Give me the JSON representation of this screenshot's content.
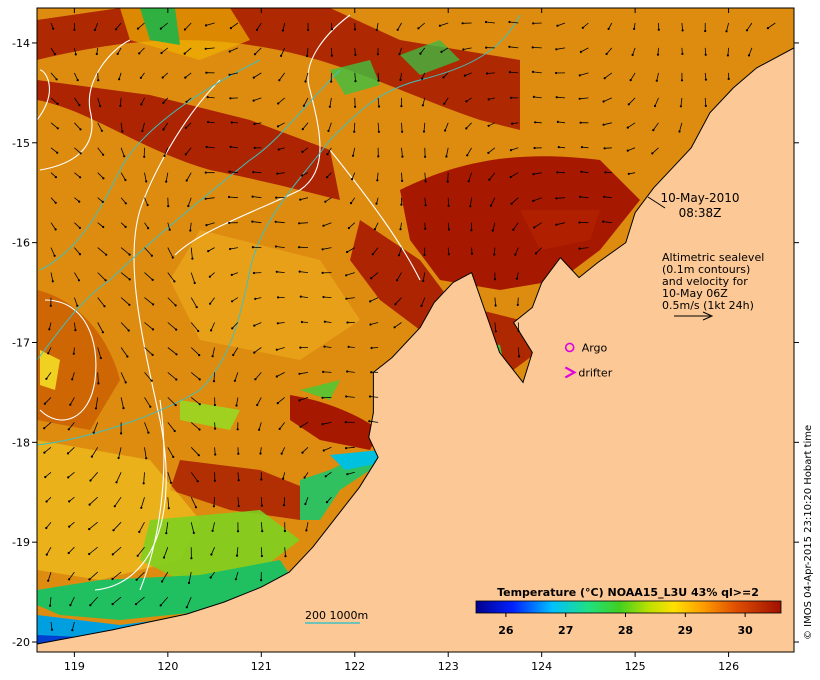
{
  "map": {
    "annotations": {
      "date": "10-May-2010",
      "time": "08:38Z",
      "altimetry_lines": [
        "Altimetric sealevel",
        "(0.1m contours)",
        "and velocity for",
        "10-May 06Z",
        "0.5m/s (1kt 24h)"
      ],
      "argo_label": "Argo",
      "drifter_label": "drifter",
      "depth_scale_label": "200  1000m"
    },
    "legend": {
      "title": "Temperature (°C) NOAA15_L3U 43% ql>=2",
      "ticks": [
        "26",
        "27",
        "28",
        "29",
        "30"
      ]
    },
    "credit": "© IMOS 04-Apr-2015 23:10:20 Hobart time",
    "colors": {
      "land": "#fcc896",
      "sst_warm": "#a01200",
      "sst_orange": "#dd8800",
      "sst_yellow": "#f0c020",
      "sst_green": "#40c040",
      "sst_cyan": "#00c0e0",
      "sst_blue": "#0000a0",
      "contour": "#ffffff",
      "isobath": "#40c0c0",
      "argo": "#e000e0"
    },
    "icons": {
      "argo": "circle-marker",
      "drifter": "chevron-marker"
    }
  },
  "chart_data": {
    "type": "map",
    "title": "",
    "xlabel": "",
    "ylabel": "",
    "xlim": [
      118.6,
      126.7
    ],
    "ylim": [
      -20.1,
      -13.65
    ],
    "x_ticks": [
      "119",
      "120",
      "121",
      "122",
      "123",
      "124",
      "125",
      "126"
    ],
    "y_ticks": [
      "-14",
      "-15",
      "-16",
      "-17",
      "-18",
      "-19",
      "-20"
    ],
    "argo": {
      "lon": 124.3,
      "lat": -17.05,
      "label": "Argo"
    },
    "drifter": {
      "lon": 124.35,
      "lat": -17.3,
      "label": "drifter"
    },
    "colorbar": {
      "min": 25.5,
      "max": 30.6,
      "ticks": [
        26,
        27,
        28,
        29,
        30
      ]
    },
    "coastline": [
      [
        118.6,
        -20.02
      ],
      [
        119.0,
        -19.95
      ],
      [
        119.4,
        -19.88
      ],
      [
        119.8,
        -19.8
      ],
      [
        120.2,
        -19.72
      ],
      [
        120.6,
        -19.6
      ],
      [
        121.0,
        -19.45
      ],
      [
        121.3,
        -19.3
      ],
      [
        121.55,
        -19.05
      ],
      [
        121.8,
        -18.75
      ],
      [
        122.05,
        -18.45
      ],
      [
        122.25,
        -18.15
      ],
      [
        122.15,
        -17.95
      ],
      [
        122.2,
        -17.7
      ],
      [
        122.2,
        -17.3
      ],
      [
        122.4,
        -17.15
      ],
      [
        122.7,
        -16.85
      ],
      [
        122.85,
        -16.6
      ],
      [
        123.05,
        -16.4
      ],
      [
        123.25,
        -16.3
      ],
      [
        123.4,
        -16.7
      ],
      [
        123.55,
        -17.1
      ],
      [
        123.8,
        -17.4
      ],
      [
        123.9,
        -17.1
      ],
      [
        123.7,
        -16.8
      ],
      [
        123.9,
        -16.65
      ],
      [
        124.0,
        -16.4
      ],
      [
        124.2,
        -16.15
      ],
      [
        124.4,
        -16.35
      ],
      [
        124.6,
        -16.2
      ],
      [
        124.9,
        -16.0
      ],
      [
        125.0,
        -15.7
      ],
      [
        125.2,
        -15.45
      ],
      [
        125.4,
        -15.25
      ],
      [
        125.6,
        -15.05
      ],
      [
        125.8,
        -14.7
      ],
      [
        126.05,
        -14.45
      ],
      [
        126.3,
        -14.25
      ],
      [
        126.7,
        -14.05
      ]
    ]
  }
}
